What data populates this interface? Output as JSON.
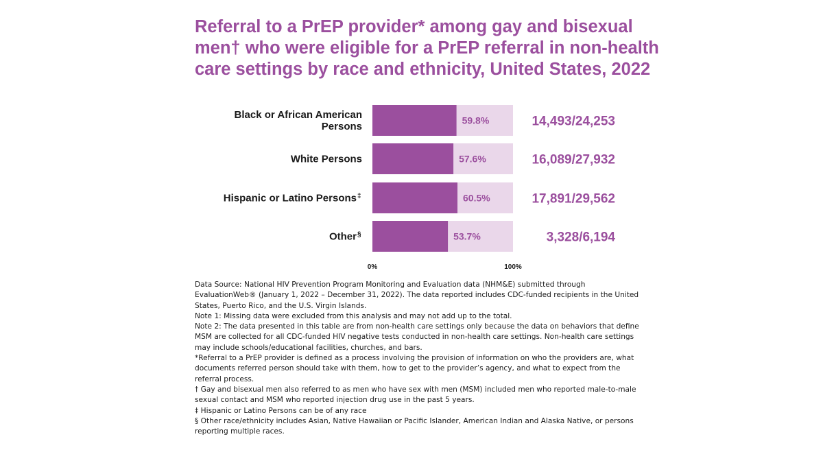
{
  "title": "Referral to a PrEP provider* among gay and bisexual men† who were eligible for a PrEP referral in non-health care settings by race and ethnicity, United States, 2022",
  "chart_data": {
    "type": "bar",
    "orientation": "horizontal",
    "stacked_to_100": true,
    "categories": [
      {
        "label": "Black or African American Persons",
        "mark": ""
      },
      {
        "label": "White Persons",
        "mark": ""
      },
      {
        "label": "Hispanic or Latino Persons",
        "mark": "‡"
      },
      {
        "label": "Other",
        "mark": "§"
      }
    ],
    "values": [
      59.8,
      57.6,
      60.5,
      53.7
    ],
    "value_labels": [
      "59.8%",
      "57.6%",
      "60.5%",
      "53.7%"
    ],
    "counts": [
      "14,493/24,253",
      "16,089/27,932",
      "17,891/29,562",
      "3,328/6,194"
    ],
    "xlim": [
      0,
      100
    ],
    "x_ticks": [
      "0%",
      "100%"
    ],
    "grid": false,
    "legend": "none",
    "colors": {
      "bar": "#9b4f9e",
      "remainder": "#ead7ea",
      "label": "#9b4f9e",
      "text": "#1a1a1a"
    }
  },
  "notes": [
    "Data Source: National HIV Prevention Program Monitoring and Evaluation data (NHM&E) submitted through EvaluationWeb® (January 1, 2022 – December 31, 2022). The data reported includes CDC-funded recipients in the United States, Puerto Rico, and the U.S. Virgin Islands.",
    "Note 1: Missing data were excluded from this analysis and may not add up to the total.",
    "Note 2: The data presented in this table are from non-health care settings only because the data on behaviors that define MSM are collected for all CDC-funded HIV negative tests conducted in non-health care settings. Non-health care settings may include schools/educational facilities, churches, and bars.",
    "*Referral to a PrEP provider is defined as a process involving the provision of information on who the providers are, what documents referred person should take with them, how to get to the provider’s agency, and what to expect from the referral process.",
    "† Gay and bisexual men also referred to as men who have sex with men (MSM) included men who reported male-to-male sexual contact and MSM who reported injection drug use in the past 5 years.",
    "‡ Hispanic or Latino Persons can be of any race",
    "§ Other race/ethnicity includes Asian, Native Hawaiian or Pacific Islander, American Indian and Alaska Native, or persons reporting multiple races."
  ]
}
